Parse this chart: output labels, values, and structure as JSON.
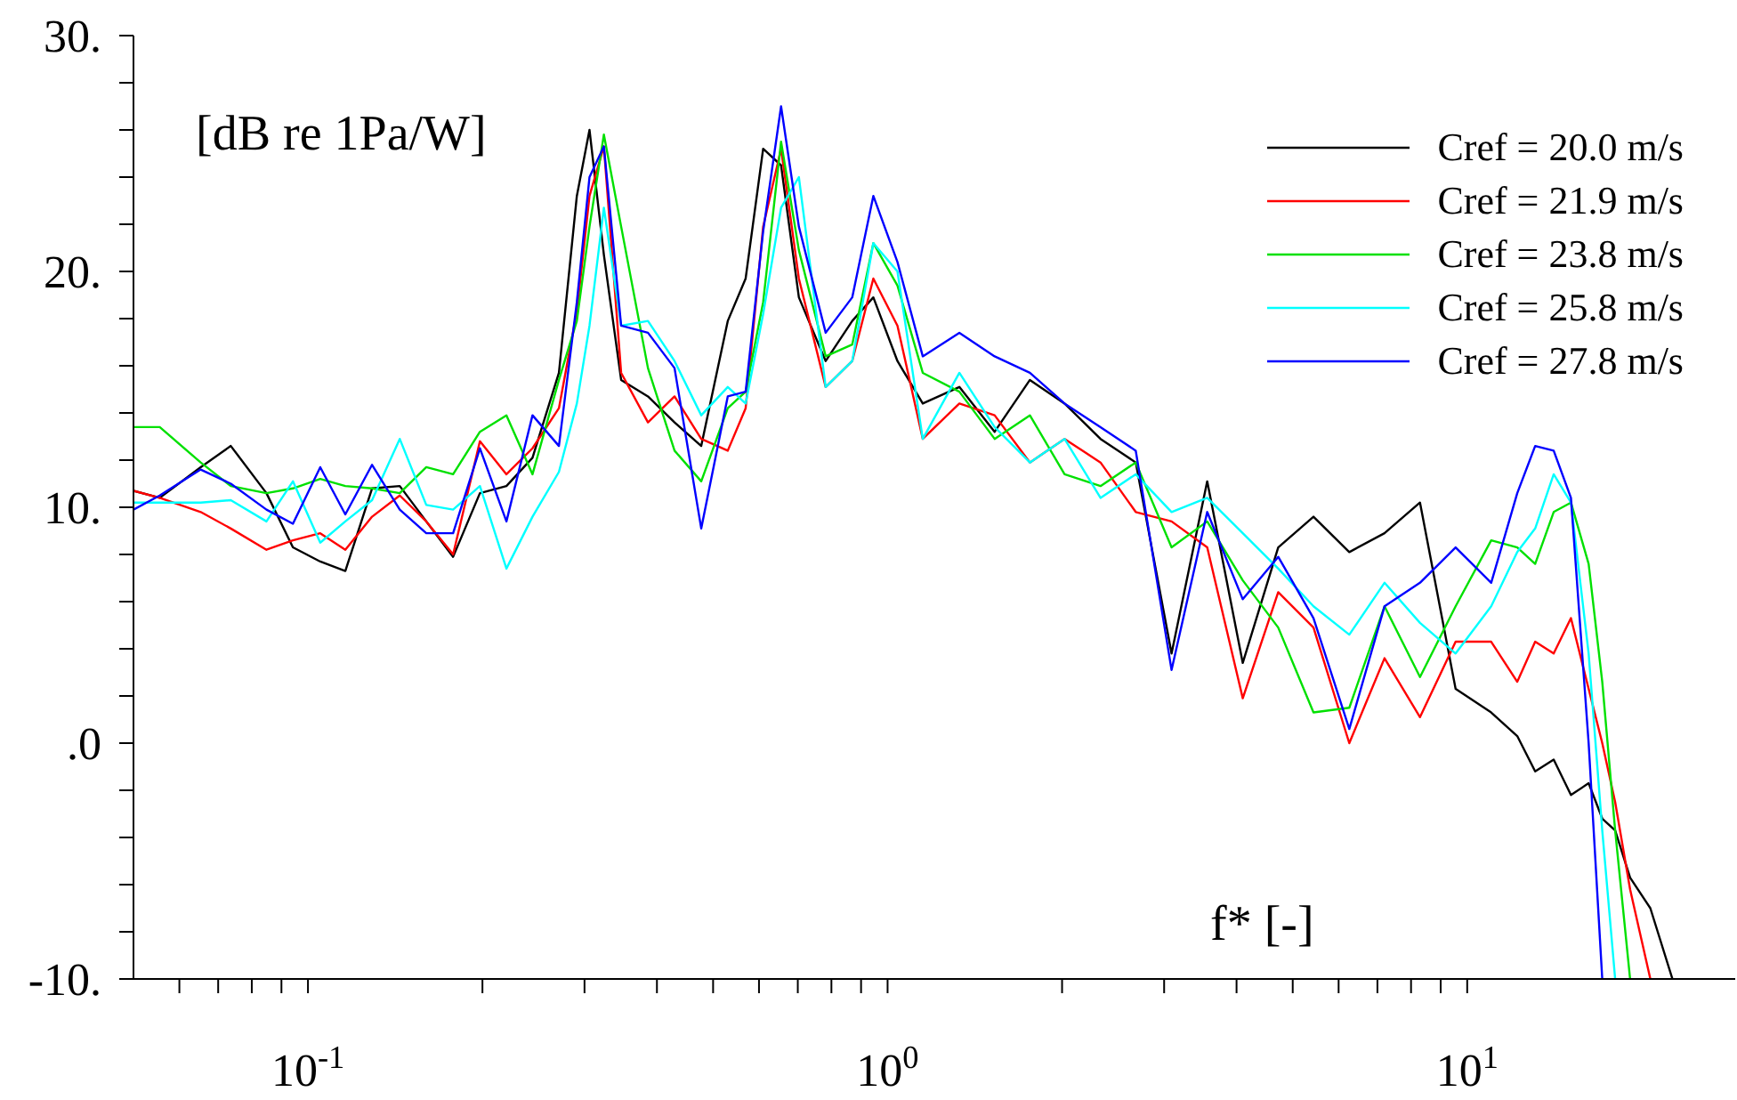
{
  "chart_data": {
    "type": "line",
    "xlabel": "f* [-]",
    "ylabel": "[dB re 1Pa/W]",
    "log": "x",
    "marker": "none",
    "legend": "top right",
    "xlim": [
      0.05,
      29
    ],
    "xticks": [
      {
        "value": 0.06,
        "label": null
      },
      {
        "value": 0.07,
        "label": null
      },
      {
        "value": 0.08,
        "label": null
      },
      {
        "value": 0.09,
        "label": null
      },
      {
        "value": 0.1,
        "label": "10$^{-1}$"
      },
      {
        "value": 0.2,
        "label": null
      },
      {
        "value": 0.3,
        "label": null
      },
      {
        "value": 0.4,
        "label": null
      },
      {
        "value": 0.5,
        "label": null
      },
      {
        "value": 0.6,
        "label": null
      },
      {
        "value": 0.7,
        "label": null
      },
      {
        "value": 0.8,
        "label": null
      },
      {
        "value": 0.9,
        "label": null
      },
      {
        "value": 1,
        "label": "10$^{0}$"
      },
      {
        "value": 2,
        "label": null
      },
      {
        "value": 3,
        "label": null
      },
      {
        "value": 4,
        "label": null
      },
      {
        "value": 5,
        "label": null
      },
      {
        "value": 6,
        "label": null
      },
      {
        "value": 7,
        "label": null
      },
      {
        "value": 8,
        "label": null
      },
      {
        "value": 9,
        "label": null
      },
      {
        "value": 10,
        "label": "10$^{1}$"
      }
    ],
    "ylim": [
      -10,
      30
    ],
    "yticks": [
      {
        "value": -10,
        "label": "-10."
      },
      {
        "value": -8,
        "label": null
      },
      {
        "value": -6,
        "label": null
      },
      {
        "value": -4,
        "label": null
      },
      {
        "value": -2,
        "label": null
      },
      {
        "value": 0,
        "label": ".0"
      },
      {
        "value": 2,
        "label": null
      },
      {
        "value": 4,
        "label": null
      },
      {
        "value": 6,
        "label": null
      },
      {
        "value": 8,
        "label": null
      },
      {
        "value": 10,
        "label": "10."
      },
      {
        "value": 12,
        "label": null
      },
      {
        "value": 14,
        "label": null
      },
      {
        "value": 16,
        "label": null
      },
      {
        "value": 18,
        "label": null
      },
      {
        "value": 20,
        "label": "20."
      },
      {
        "value": 22,
        "label": null
      },
      {
        "value": 24,
        "label": null
      },
      {
        "value": 26,
        "label": null
      },
      {
        "value": 28,
        "label": null
      },
      {
        "value": 30,
        "label": "30."
      }
    ],
    "x": [
      0.05,
      0.0555,
      0.0653,
      0.0736,
      0.0848,
      0.0942,
      0.105,
      0.116,
      0.129,
      0.144,
      0.16,
      0.178,
      0.198,
      0.22,
      0.244,
      0.271,
      0.291,
      0.306,
      0.324,
      0.347,
      0.386,
      0.429,
      0.477,
      0.53,
      0.569,
      0.61,
      0.655,
      0.703,
      0.782,
      0.869,
      0.945,
      1.04,
      1.15,
      1.33,
      1.53,
      1.76,
      2.02,
      2.33,
      2.68,
      3.09,
      3.56,
      4.1,
      4.72,
      5.43,
      6.26,
      7.2,
      8.29,
      9.55,
      11.0,
      12.2,
      13.1,
      14.1,
      15.1,
      16.2,
      17.1,
      18.0,
      19.1,
      20.7,
      22.6
    ],
    "series": [
      {
        "name": "Cref = 20.0 m/s",
        "color": "#000000",
        "values": [
          10.7,
          10.4,
          11.7,
          12.6,
          10.6,
          8.3,
          7.7,
          7.3,
          10.8,
          10.9,
          9.4,
          7.9,
          10.6,
          10.9,
          12.1,
          15.7,
          23.2,
          26.0,
          20.7,
          15.4,
          14.7,
          13.6,
          12.6,
          17.9,
          19.7,
          25.2,
          24.5,
          18.9,
          16.2,
          17.9,
          18.9,
          16.2,
          14.4,
          15.1,
          13.2,
          15.4,
          14.4,
          12.9,
          11.9,
          3.8,
          11.1,
          3.4,
          8.3,
          9.6,
          8.1,
          8.9,
          10.2,
          2.3,
          1.3,
          0.3,
          -1.2,
          -0.7,
          -2.2,
          -1.7,
          -3.2,
          -3.7,
          -5.7,
          -7.0,
          -10
        ]
      },
      {
        "name": "Cref = 21.9 m/s",
        "color": "#ff0000",
        "values": [
          10.7,
          10.4,
          9.8,
          9.1,
          8.2,
          8.6,
          8.9,
          8.2,
          9.6,
          10.5,
          9.4,
          8.0,
          12.8,
          11.4,
          12.5,
          14.2,
          18.3,
          23.2,
          25.3,
          15.7,
          13.6,
          14.7,
          12.9,
          12.4,
          14.2,
          21.9,
          25.2,
          19.7,
          15.1,
          16.2,
          19.7,
          17.7,
          12.9,
          14.4,
          13.9,
          11.9,
          12.9,
          11.9,
          9.8,
          9.4,
          8.3,
          1.9,
          6.4,
          4.9,
          0.0,
          3.6,
          1.1,
          4.3,
          4.3,
          2.6,
          4.3,
          3.8,
          5.3,
          2.3,
          0.0,
          -2.5,
          -6.2,
          -10,
          null
        ]
      },
      {
        "name": "Cref = 23.8 m/s",
        "color": "#00e000",
        "values": [
          13.4,
          13.4,
          11.9,
          10.9,
          10.6,
          10.8,
          11.2,
          10.9,
          10.8,
          10.6,
          11.7,
          11.4,
          13.2,
          13.9,
          11.4,
          15.4,
          17.9,
          21.9,
          25.8,
          21.9,
          15.9,
          12.4,
          11.1,
          14.2,
          14.9,
          18.7,
          25.5,
          20.9,
          16.4,
          16.9,
          21.2,
          19.4,
          15.7,
          14.9,
          12.9,
          13.9,
          11.4,
          10.9,
          11.9,
          8.3,
          9.4,
          6.9,
          4.9,
          1.3,
          1.5,
          5.8,
          2.8,
          5.8,
          8.6,
          8.3,
          7.6,
          9.8,
          10.2,
          7.6,
          2.6,
          -3.7,
          -10,
          null,
          null
        ]
      },
      {
        "name": "Cref = 25.8 m/s",
        "color": "#00ffff",
        "values": [
          10.2,
          10.2,
          10.2,
          10.3,
          9.4,
          11.1,
          8.5,
          9.4,
          10.3,
          12.9,
          10.1,
          9.9,
          10.9,
          7.4,
          9.6,
          11.5,
          14.4,
          17.7,
          22.7,
          17.7,
          17.9,
          16.2,
          13.9,
          15.1,
          14.4,
          18.2,
          22.7,
          24.0,
          15.1,
          16.2,
          21.2,
          20.0,
          12.9,
          15.7,
          13.4,
          11.9,
          12.9,
          10.4,
          11.4,
          9.8,
          10.4,
          8.9,
          7.4,
          5.8,
          4.6,
          6.8,
          5.1,
          3.8,
          5.8,
          8.1,
          9.1,
          11.4,
          10.2,
          3.8,
          -3.7,
          -10,
          null,
          null,
          null
        ]
      },
      {
        "name": "Cref = 27.8 m/s",
        "color": "#0000ff",
        "values": [
          9.9,
          10.5,
          11.6,
          11.0,
          9.9,
          9.3,
          11.7,
          9.7,
          11.8,
          9.9,
          8.9,
          8.9,
          12.5,
          9.4,
          13.9,
          12.6,
          18.7,
          24.0,
          25.3,
          17.7,
          17.4,
          15.9,
          9.1,
          14.7,
          14.9,
          21.7,
          27.0,
          21.9,
          17.4,
          18.9,
          23.2,
          20.4,
          16.4,
          17.4,
          16.4,
          15.7,
          14.4,
          13.4,
          12.4,
          3.1,
          9.8,
          6.1,
          7.9,
          5.3,
          0.6,
          5.8,
          6.8,
          8.3,
          6.8,
          10.6,
          12.6,
          12.4,
          10.4,
          0.0,
          -10,
          null,
          null,
          null,
          null
        ]
      }
    ]
  }
}
